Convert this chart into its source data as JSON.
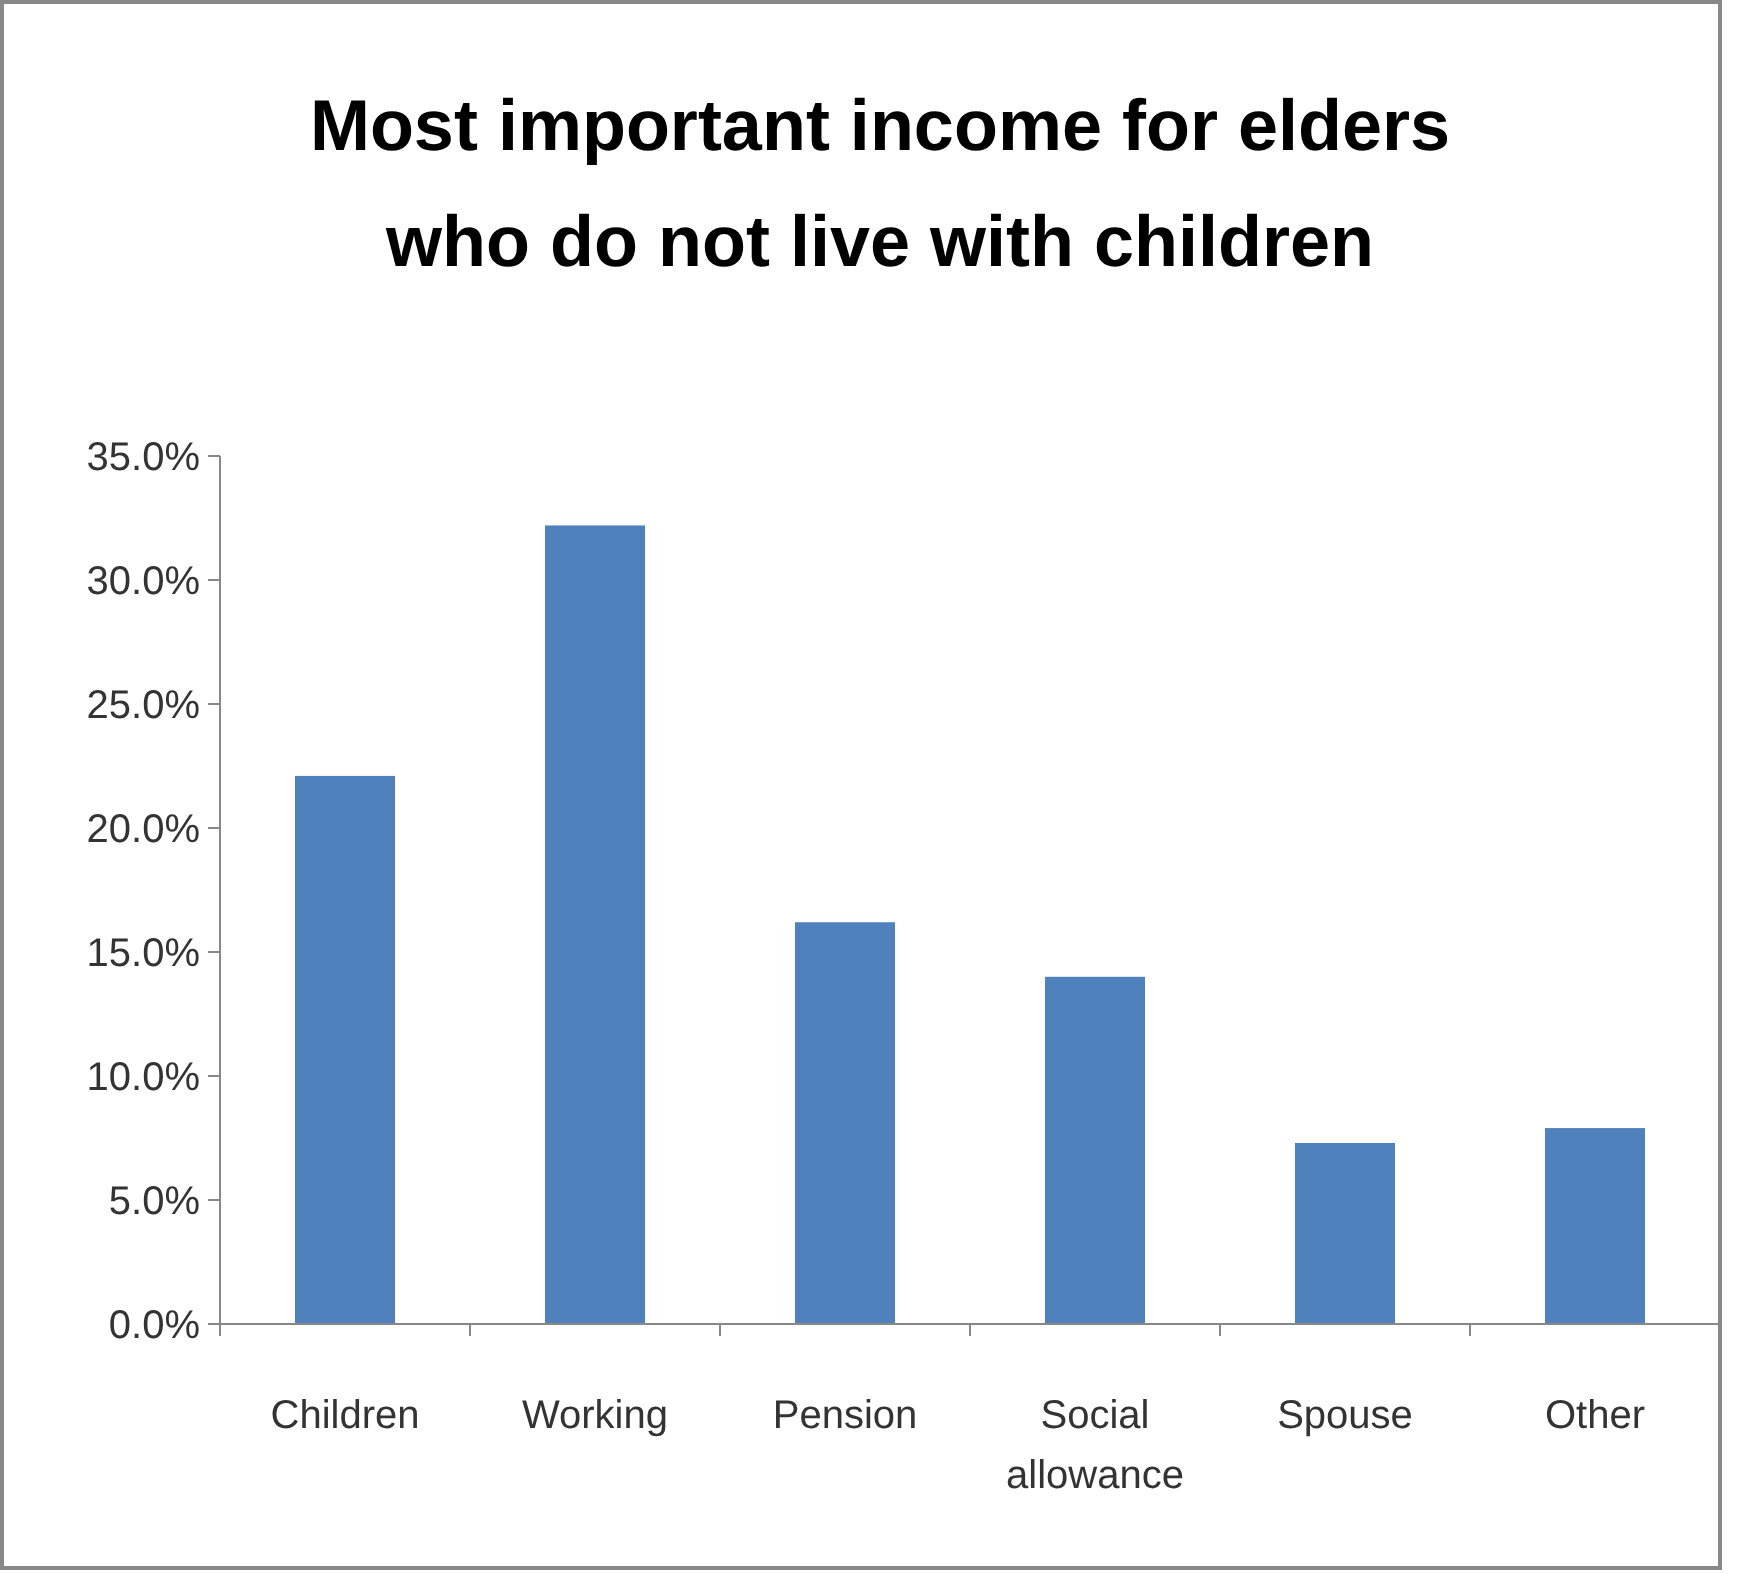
{
  "chart_data": {
    "type": "bar",
    "title": "Most important income for elders who do not live with children",
    "categories": [
      "Children",
      "Working",
      "Pension",
      "Social allowance",
      "Spouse",
      "Other"
    ],
    "values": [
      22.1,
      32.2,
      16.2,
      14.0,
      7.3,
      7.9
    ],
    "color": "#4f81bd",
    "ylim": [
      0,
      35
    ],
    "yticks": [
      {
        "value": 0,
        "label": "0.0%"
      },
      {
        "value": 5,
        "label": "5.0%"
      },
      {
        "value": 10,
        "label": "10.0%"
      },
      {
        "value": 15,
        "label": "15.0%"
      },
      {
        "value": 20,
        "label": "20.0%"
      },
      {
        "value": 25,
        "label": "25.0%"
      },
      {
        "value": 30,
        "label": "30.0%"
      },
      {
        "value": 35,
        "label": "35.0%"
      }
    ],
    "grid": false
  }
}
